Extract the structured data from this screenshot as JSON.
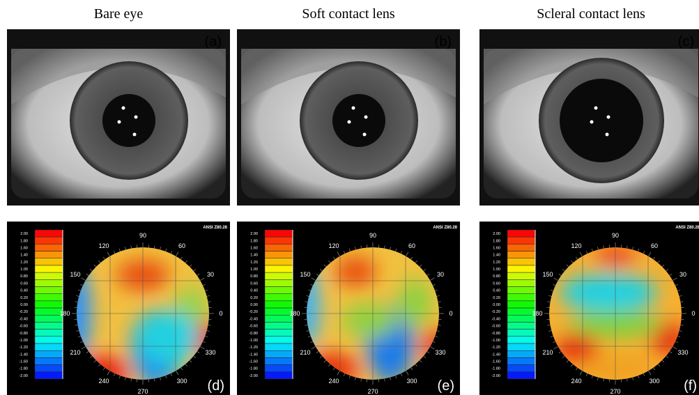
{
  "columns": [
    {
      "title": "Bare eye",
      "photo_label": "(a)",
      "map_label": "(d)"
    },
    {
      "title": "Soft contact lens",
      "photo_label": "(b)",
      "map_label": "(e)"
    },
    {
      "title": "Scleral contact lens",
      "photo_label": "(c)",
      "map_label": "(f)"
    }
  ],
  "map": {
    "scale": [
      "2.00",
      "1.80",
      "1.60",
      "1.40",
      "1.20",
      "1.00",
      "0.80",
      "0.60",
      "0.40",
      "0.20",
      "0.00",
      "-0.20",
      "-0.40",
      "-0.60",
      "-0.80",
      "-1.00",
      "-1.20",
      "-1.40",
      "-1.60",
      "-1.80",
      "-2.00"
    ],
    "angles": [
      90,
      60,
      30,
      0,
      330,
      300,
      270,
      240,
      210,
      180,
      150,
      120
    ],
    "standard": "ANSI Z80.28"
  }
}
